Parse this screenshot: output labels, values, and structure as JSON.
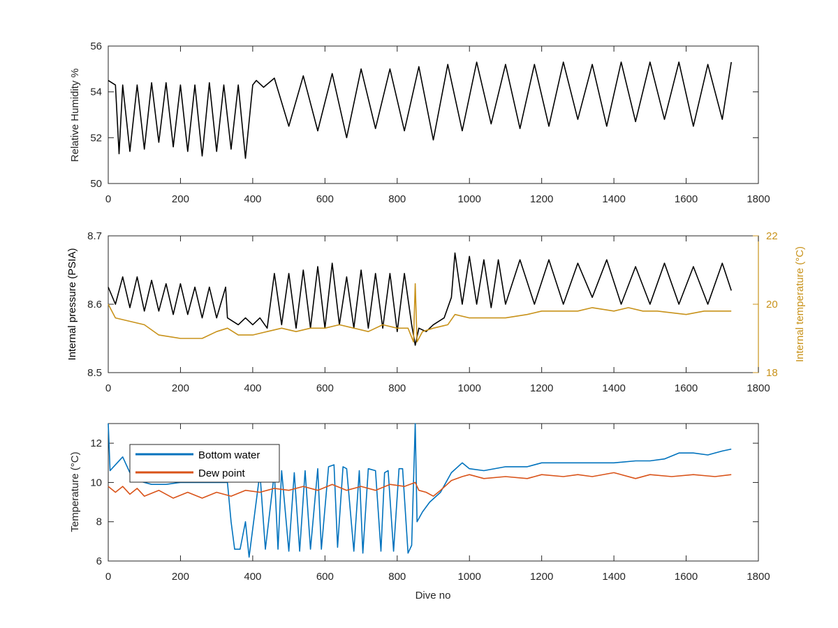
{
  "chart_data": [
    {
      "type": "line",
      "xlabel": "",
      "ylabel": "Relative Humidity %",
      "xlim": [
        0,
        1800
      ],
      "ylim": [
        50,
        56
      ],
      "xticks": [
        0,
        200,
        400,
        600,
        800,
        1000,
        1200,
        1400,
        1600,
        1800
      ],
      "yticks": [
        50,
        52,
        54,
        56
      ],
      "colors": {
        "series": "#000000"
      },
      "series": [
        {
          "name": "",
          "color": "#000000",
          "x": [
            0,
            20,
            30,
            40,
            60,
            80,
            100,
            120,
            140,
            160,
            180,
            200,
            220,
            240,
            260,
            280,
            300,
            320,
            340,
            360,
            380,
            400,
            410,
            430,
            460,
            500,
            540,
            580,
            620,
            660,
            700,
            740,
            780,
            820,
            860,
            900,
            940,
            980,
            1020,
            1060,
            1100,
            1140,
            1180,
            1220,
            1260,
            1300,
            1340,
            1380,
            1420,
            1460,
            1500,
            1540,
            1580,
            1620,
            1660,
            1700,
            1725
          ],
          "y": [
            54.5,
            54.3,
            51.3,
            54.3,
            51.4,
            54.3,
            51.5,
            54.4,
            51.8,
            54.4,
            51.6,
            54.3,
            51.4,
            54.3,
            51.2,
            54.4,
            51.4,
            54.3,
            51.5,
            54.3,
            51.1,
            54.3,
            54.5,
            54.2,
            54.6,
            52.5,
            54.7,
            52.3,
            54.8,
            52.0,
            55.0,
            52.4,
            55.0,
            52.3,
            55.1,
            51.9,
            55.2,
            52.3,
            55.3,
            52.6,
            55.2,
            52.4,
            55.2,
            52.5,
            55.3,
            52.8,
            55.2,
            52.5,
            55.3,
            52.7,
            55.3,
            52.8,
            55.3,
            52.5,
            55.2,
            52.8,
            55.3
          ]
        }
      ]
    },
    {
      "type": "line",
      "xlabel": "",
      "ylabel": "Internal pressure (PSIA)",
      "y2label": "Internal temperature (°C)",
      "xlim": [
        0,
        1800
      ],
      "ylim": [
        8.5,
        8.7
      ],
      "y2lim": [
        18,
        22
      ],
      "xticks": [
        0,
        200,
        400,
        600,
        800,
        1000,
        1200,
        1400,
        1600,
        1800
      ],
      "yticks": [
        8.5,
        8.6,
        8.7
      ],
      "y2ticks": [
        18,
        20,
        22
      ],
      "colors": {
        "pressure": "#000000",
        "temperature": "#c8921a"
      },
      "series": [
        {
          "name": "",
          "axis": "left",
          "color": "#000000",
          "x": [
            0,
            20,
            40,
            60,
            80,
            100,
            120,
            140,
            160,
            180,
            200,
            220,
            240,
            260,
            280,
            300,
            325,
            330,
            360,
            380,
            400,
            420,
            440,
            460,
            480,
            500,
            520,
            540,
            560,
            580,
            600,
            620,
            640,
            660,
            680,
            700,
            720,
            740,
            760,
            780,
            800,
            820,
            840,
            850,
            860,
            880,
            900,
            930,
            950,
            960,
            980,
            1000,
            1020,
            1040,
            1060,
            1080,
            1100,
            1140,
            1180,
            1220,
            1260,
            1300,
            1340,
            1380,
            1420,
            1460,
            1500,
            1540,
            1580,
            1620,
            1660,
            1700,
            1725
          ],
          "y": [
            8.625,
            8.6,
            8.64,
            8.595,
            8.64,
            8.59,
            8.635,
            8.59,
            8.63,
            8.585,
            8.63,
            8.585,
            8.625,
            8.58,
            8.625,
            8.58,
            8.625,
            8.58,
            8.57,
            8.58,
            8.57,
            8.58,
            8.565,
            8.645,
            8.57,
            8.645,
            8.565,
            8.65,
            8.565,
            8.655,
            8.565,
            8.66,
            8.57,
            8.64,
            8.565,
            8.65,
            8.565,
            8.645,
            8.565,
            8.645,
            8.56,
            8.645,
            8.57,
            8.54,
            8.565,
            8.56,
            8.57,
            8.58,
            8.61,
            8.675,
            8.6,
            8.67,
            8.6,
            8.665,
            8.595,
            8.665,
            8.6,
            8.665,
            8.6,
            8.665,
            8.6,
            8.66,
            8.61,
            8.665,
            8.6,
            8.655,
            8.6,
            8.66,
            8.6,
            8.655,
            8.6,
            8.66,
            8.62
          ]
        },
        {
          "name": "",
          "axis": "right",
          "color": "#c8921a",
          "x": [
            0,
            20,
            60,
            100,
            140,
            200,
            260,
            300,
            330,
            360,
            400,
            440,
            480,
            520,
            560,
            600,
            640,
            680,
            720,
            760,
            800,
            830,
            845,
            850,
            855,
            870,
            900,
            940,
            960,
            1000,
            1100,
            1160,
            1200,
            1300,
            1340,
            1400,
            1440,
            1480,
            1520,
            1600,
            1650,
            1700,
            1725
          ],
          "y": [
            20.0,
            19.6,
            19.5,
            19.4,
            19.1,
            19.0,
            19.0,
            19.2,
            19.3,
            19.1,
            19.1,
            19.2,
            19.3,
            19.2,
            19.3,
            19.3,
            19.4,
            19.3,
            19.2,
            19.4,
            19.3,
            19.3,
            18.9,
            20.6,
            18.9,
            19.2,
            19.3,
            19.4,
            19.7,
            19.6,
            19.6,
            19.7,
            19.8,
            19.8,
            19.9,
            19.8,
            19.9,
            19.8,
            19.8,
            19.7,
            19.8,
            19.8,
            19.8
          ]
        }
      ]
    },
    {
      "type": "line",
      "xlabel": "Dive no",
      "ylabel": "Temperature (°C)",
      "xlim": [
        0,
        1800
      ],
      "ylim": [
        6,
        13
      ],
      "xticks": [
        0,
        200,
        400,
        600,
        800,
        1000,
        1200,
        1400,
        1600,
        1800
      ],
      "yticks": [
        6,
        8,
        10,
        12
      ],
      "legend": "top-left",
      "series": [
        {
          "name": "Bottom water",
          "color": "#0072bd",
          "x": [
            0,
            5,
            20,
            40,
            60,
            80,
            120,
            160,
            200,
            260,
            300,
            330,
            340,
            350,
            365,
            380,
            390,
            420,
            435,
            460,
            470,
            480,
            500,
            515,
            530,
            545,
            560,
            580,
            590,
            610,
            625,
            635,
            650,
            660,
            680,
            695,
            705,
            720,
            740,
            755,
            765,
            775,
            790,
            805,
            815,
            830,
            840,
            850,
            855,
            870,
            890,
            920,
            950,
            980,
            1000,
            1040,
            1100,
            1160,
            1200,
            1260,
            1300,
            1400,
            1460,
            1500,
            1540,
            1580,
            1620,
            1660,
            1700,
            1725
          ],
          "y": [
            13.0,
            10.6,
            10.9,
            11.3,
            10.5,
            10.1,
            9.9,
            9.9,
            10.0,
            10.0,
            10.0,
            10.0,
            8.0,
            6.6,
            6.6,
            8.0,
            6.2,
            10.5,
            6.6,
            10.5,
            6.6,
            10.6,
            6.5,
            10.5,
            6.5,
            10.6,
            6.6,
            10.7,
            6.6,
            10.8,
            10.9,
            6.7,
            10.8,
            10.7,
            6.5,
            10.6,
            6.4,
            10.7,
            10.6,
            6.5,
            10.5,
            10.6,
            6.5,
            10.7,
            10.7,
            6.4,
            6.8,
            13.0,
            8.0,
            8.5,
            9.0,
            9.5,
            10.5,
            11.0,
            10.7,
            10.6,
            10.8,
            10.8,
            11.0,
            11.0,
            11.0,
            11.0,
            11.1,
            11.1,
            11.2,
            11.5,
            11.5,
            11.4,
            11.6,
            11.7
          ]
        },
        {
          "name": "Dew point",
          "color": "#d95319",
          "x": [
            0,
            20,
            40,
            60,
            80,
            100,
            140,
            180,
            220,
            260,
            300,
            340,
            380,
            420,
            460,
            500,
            540,
            580,
            620,
            660,
            700,
            740,
            780,
            820,
            850,
            860,
            880,
            900,
            920,
            950,
            980,
            1000,
            1040,
            1100,
            1160,
            1200,
            1260,
            1300,
            1340,
            1400,
            1460,
            1500,
            1560,
            1620,
            1680,
            1725
          ],
          "y": [
            9.8,
            9.5,
            9.8,
            9.4,
            9.7,
            9.3,
            9.6,
            9.2,
            9.5,
            9.2,
            9.5,
            9.3,
            9.6,
            9.5,
            9.7,
            9.6,
            9.8,
            9.6,
            9.9,
            9.6,
            9.8,
            9.6,
            9.9,
            9.8,
            10.0,
            9.6,
            9.5,
            9.3,
            9.6,
            10.1,
            10.3,
            10.4,
            10.2,
            10.3,
            10.2,
            10.4,
            10.3,
            10.4,
            10.3,
            10.5,
            10.2,
            10.4,
            10.3,
            10.4,
            10.3,
            10.4
          ]
        }
      ]
    }
  ]
}
